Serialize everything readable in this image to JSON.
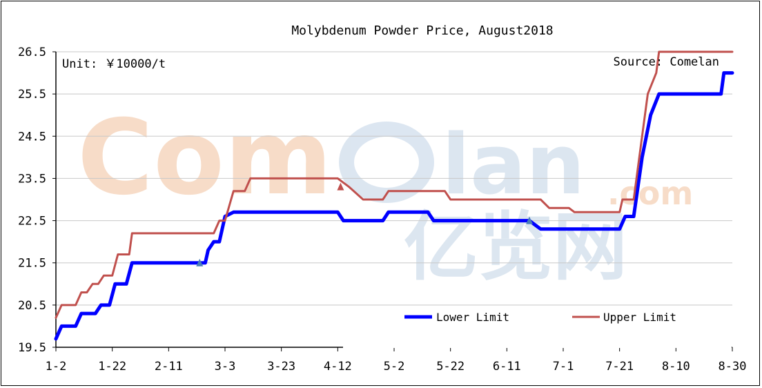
{
  "chart_data": {
    "type": "line",
    "title": "Molybdenum Powder Price, August2018",
    "unit_label": "Unit: ￥10000/t",
    "source_label": "Source: Comelan",
    "watermark": "Comelan.com 亿览网",
    "x_ticks": [
      "1-2",
      "1-22",
      "2-11",
      "3-3",
      "3-23",
      "4-12",
      "5-2",
      "5-22",
      "6-11",
      "7-1",
      "7-21",
      "8-10",
      "8-30"
    ],
    "y_ticks": [
      "19.5",
      "20.5",
      "21.5",
      "22.5",
      "23.5",
      "24.5",
      "25.5",
      "26.5"
    ],
    "ylim": [
      19.5,
      26.5
    ],
    "xlim": [
      "1-2",
      "8-30"
    ],
    "grid": true,
    "legend_position": "lower-right",
    "series": [
      {
        "name": "Lower Limit",
        "color": "#0000FF",
        "points": [
          [
            "1-2",
            19.7
          ],
          [
            "1-4",
            20.0
          ],
          [
            "1-9",
            20.0
          ],
          [
            "1-11",
            20.3
          ],
          [
            "1-16",
            20.3
          ],
          [
            "1-18",
            20.5
          ],
          [
            "1-21",
            20.5
          ],
          [
            "1-23",
            21.0
          ],
          [
            "1-27",
            21.0
          ],
          [
            "1-29",
            21.5
          ],
          [
            "2-22",
            21.5
          ],
          [
            "2-24",
            21.5
          ],
          [
            "2-25",
            21.8
          ],
          [
            "2-27",
            22.0
          ],
          [
            "3-1",
            22.0
          ],
          [
            "3-3",
            22.6
          ],
          [
            "3-6",
            22.7
          ],
          [
            "4-12",
            22.7
          ],
          [
            "4-14",
            22.5
          ],
          [
            "4-28",
            22.5
          ],
          [
            "4-30",
            22.7
          ],
          [
            "5-14",
            22.7
          ],
          [
            "5-16",
            22.5
          ],
          [
            "6-19",
            22.5
          ],
          [
            "6-23",
            22.3
          ],
          [
            "7-21",
            22.3
          ],
          [
            "7-23",
            22.6
          ],
          [
            "7-26",
            22.6
          ],
          [
            "7-29",
            24.0
          ],
          [
            "8-1",
            25.0
          ],
          [
            "8-4",
            25.5
          ],
          [
            "8-24",
            25.5
          ],
          [
            "8-26",
            25.5
          ],
          [
            "8-27",
            26.0
          ],
          [
            "8-30",
            26.0
          ]
        ],
        "markers": [
          [
            "2-22",
            21.5
          ],
          [
            "6-19",
            22.5
          ]
        ]
      },
      {
        "name": "Upper Limit",
        "color": "#C0504D",
        "points": [
          [
            "1-2",
            20.2
          ],
          [
            "1-4",
            20.5
          ],
          [
            "1-9",
            20.5
          ],
          [
            "1-11",
            20.8
          ],
          [
            "1-13",
            20.8
          ],
          [
            "1-15",
            21.0
          ],
          [
            "1-17",
            21.0
          ],
          [
            "1-19",
            21.2
          ],
          [
            "1-22",
            21.2
          ],
          [
            "1-24",
            21.7
          ],
          [
            "1-28",
            21.7
          ],
          [
            "1-29",
            22.2
          ],
          [
            "2-27",
            22.2
          ],
          [
            "3-1",
            22.5
          ],
          [
            "3-3",
            22.5
          ],
          [
            "3-6",
            23.2
          ],
          [
            "3-10",
            23.2
          ],
          [
            "3-12",
            23.5
          ],
          [
            "4-12",
            23.5
          ],
          [
            "4-16",
            23.3
          ],
          [
            "4-21",
            23.0
          ],
          [
            "4-28",
            23.0
          ],
          [
            "4-30",
            23.2
          ],
          [
            "5-20",
            23.2
          ],
          [
            "5-22",
            23.0
          ],
          [
            "6-23",
            23.0
          ],
          [
            "6-26",
            22.8
          ],
          [
            "7-3",
            22.8
          ],
          [
            "7-5",
            22.7
          ],
          [
            "7-21",
            22.7
          ],
          [
            "7-22",
            23.0
          ],
          [
            "7-26",
            23.0
          ],
          [
            "7-29",
            24.5
          ],
          [
            "7-31",
            25.5
          ],
          [
            "8-3",
            26.0
          ],
          [
            "8-4",
            26.5
          ],
          [
            "8-30",
            26.5
          ]
        ],
        "markers": [
          [
            "4-13",
            23.3
          ]
        ]
      }
    ]
  }
}
